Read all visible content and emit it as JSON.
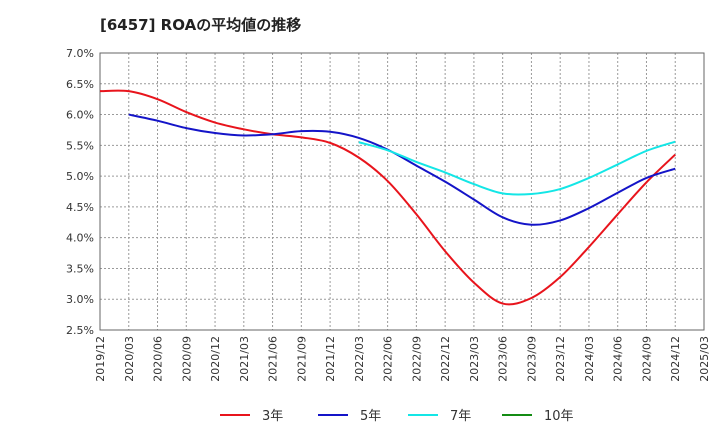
{
  "chart_data": {
    "type": "line",
    "title": "[6457]  ROAの平均値の推移",
    "xlabel": "",
    "ylabel": "",
    "ylim": [
      2.5,
      7.0
    ],
    "y_ticks": [
      "7.0%",
      "6.5%",
      "6.0%",
      "5.5%",
      "5.0%",
      "4.5%",
      "4.0%",
      "3.5%",
      "3.0%",
      "2.5%"
    ],
    "y_tick_values": [
      7.0,
      6.5,
      6.0,
      5.5,
      5.0,
      4.5,
      4.0,
      3.5,
      3.0,
      2.5
    ],
    "x_ticks": [
      "2019/12",
      "2020/03",
      "2020/06",
      "2020/09",
      "2020/12",
      "2021/03",
      "2021/06",
      "2021/09",
      "2021/12",
      "2022/03",
      "2022/06",
      "2022/09",
      "2022/12",
      "2023/03",
      "2023/06",
      "2023/09",
      "2023/12",
      "2024/03",
      "2024/06",
      "2024/09",
      "2024/12",
      "2025/03"
    ],
    "grid": true,
    "legend_position": "bottom",
    "series": [
      {
        "name": "3年",
        "color": "#e8141c",
        "x": [
          "2019/12",
          "2020/03",
          "2020/06",
          "2020/09",
          "2020/12",
          "2021/03",
          "2021/06",
          "2021/09",
          "2021/12",
          "2022/03",
          "2022/06",
          "2022/09",
          "2022/12",
          "2023/03",
          "2023/06",
          "2023/09",
          "2023/12",
          "2024/03",
          "2024/06",
          "2024/09",
          "2024/12"
        ],
        "values": [
          6.38,
          6.38,
          6.25,
          6.04,
          5.87,
          5.76,
          5.68,
          5.63,
          5.54,
          5.3,
          4.92,
          4.38,
          3.78,
          3.27,
          2.93,
          3.02,
          3.36,
          3.85,
          4.38,
          4.9,
          5.35
        ]
      },
      {
        "name": "5年",
        "color": "#1414c8",
        "x": [
          "2020/03",
          "2020/06",
          "2020/09",
          "2020/12",
          "2021/03",
          "2021/06",
          "2021/09",
          "2021/12",
          "2022/03",
          "2022/06",
          "2022/09",
          "2022/12",
          "2023/03",
          "2023/06",
          "2023/09",
          "2023/12",
          "2024/03",
          "2024/06",
          "2024/09",
          "2024/12"
        ],
        "values": [
          6.0,
          5.9,
          5.78,
          5.7,
          5.66,
          5.68,
          5.73,
          5.72,
          5.62,
          5.43,
          5.17,
          4.91,
          4.62,
          4.33,
          4.21,
          4.28,
          4.48,
          4.73,
          4.97,
          5.12
        ]
      },
      {
        "name": "7年",
        "color": "#14e6e6",
        "x": [
          "2022/03",
          "2022/06",
          "2022/09",
          "2022/12",
          "2023/03",
          "2023/06",
          "2023/09",
          "2023/12",
          "2024/03",
          "2024/06",
          "2024/09",
          "2024/12"
        ],
        "values": [
          5.55,
          5.42,
          5.23,
          5.06,
          4.87,
          4.72,
          4.71,
          4.79,
          4.97,
          5.19,
          5.41,
          5.56
        ]
      },
      {
        "name": "10年",
        "color": "#148c14",
        "x": [],
        "values": []
      }
    ]
  }
}
